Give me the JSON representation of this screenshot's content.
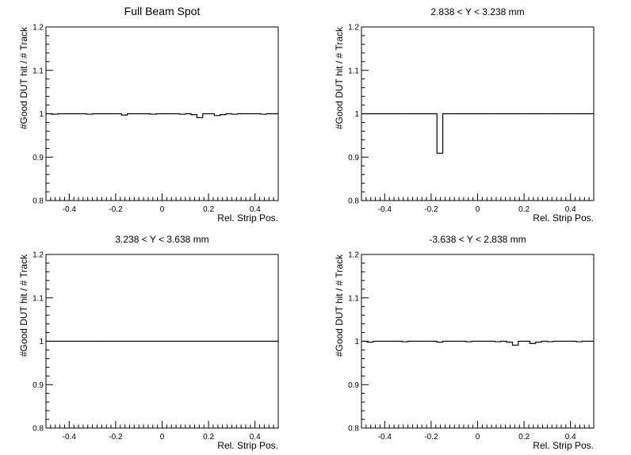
{
  "chart_data": [
    {
      "type": "line",
      "title": "Full Beam Spot",
      "xlabel": "Rel. Strip Pos.",
      "ylabel": "#Good DUT hit / # Track",
      "xlim": [
        -0.5,
        0.5
      ],
      "ylim": [
        0.8,
        1.2
      ],
      "xticks": [
        "-0.4",
        "-0.2",
        "0",
        "0.2",
        "0.4"
      ],
      "xtick_values": [
        -0.4,
        -0.2,
        0,
        0.2,
        0.4
      ],
      "yticks": [
        "0.8",
        "0.9",
        "1",
        "1.1",
        "1.2"
      ],
      "ytick_values": [
        0.8,
        0.9,
        1.0,
        1.1,
        1.2
      ],
      "grid": false,
      "bin_width": 0.025,
      "values": [
        1.0,
        0.999,
        1.0,
        1.0,
        1.0,
        1.0,
        1.0,
        0.999,
        1.0,
        1.0,
        1.0,
        1.0,
        1.0,
        0.997,
        1.0,
        1.0,
        1.0,
        1.0,
        0.999,
        1.0,
        1.0,
        1.0,
        1.0,
        0.999,
        1.0,
        0.998,
        0.991,
        1.0,
        1.0,
        0.996,
        0.998,
        1.0,
        0.999,
        1.0,
        1.0,
        1.0,
        1.0,
        0.999,
        1.0,
        1.0
      ]
    },
    {
      "type": "line",
      "title": "2.838 < Y <  3.238 mm",
      "xlabel": "Rel. Strip Pos.",
      "ylabel": "#Good DUT hit / # Track",
      "xlim": [
        -0.5,
        0.5
      ],
      "ylim": [
        0.8,
        1.2
      ],
      "xticks": [
        "-0.4",
        "-0.2",
        "0",
        "0.2",
        "0.4"
      ],
      "xtick_values": [
        -0.4,
        -0.2,
        0,
        0.2,
        0.4
      ],
      "yticks": [
        "0.8",
        "0.9",
        "1",
        "1.1",
        "1.2"
      ],
      "ytick_values": [
        0.8,
        0.9,
        1.0,
        1.1,
        1.2
      ],
      "grid": false,
      "bin_width": 0.025,
      "values": [
        1.0,
        1.0,
        1.0,
        1.0,
        1.0,
        1.0,
        1.0,
        1.0,
        1.0,
        1.0,
        1.0,
        1.0,
        1.0,
        0.909,
        1.0,
        1.0,
        1.0,
        1.0,
        1.0,
        1.0,
        1.0,
        1.0,
        1.0,
        1.0,
        1.0,
        1.0,
        1.0,
        1.0,
        1.0,
        1.0,
        1.0,
        1.0,
        1.0,
        1.0,
        1.0,
        1.0,
        1.0,
        1.0,
        1.0,
        1.0
      ]
    },
    {
      "type": "line",
      "title": "3.238 < Y <  3.638 mm",
      "xlabel": "Rel. Strip Pos.",
      "ylabel": "#Good DUT hit / # Track",
      "xlim": [
        -0.5,
        0.5
      ],
      "ylim": [
        0.8,
        1.2
      ],
      "xticks": [
        "-0.4",
        "-0.2",
        "0",
        "0.2",
        "0.4"
      ],
      "xtick_values": [
        -0.4,
        -0.2,
        0,
        0.2,
        0.4
      ],
      "yticks": [
        "0.8",
        "0.9",
        "1",
        "1.1",
        "1.2"
      ],
      "ytick_values": [
        0.8,
        0.9,
        1.0,
        1.1,
        1.2
      ],
      "grid": false,
      "bin_width": 0.025,
      "values": [
        1.0,
        1.0,
        1.0,
        1.0,
        1.0,
        1.0,
        1.0,
        1.0,
        1.0,
        1.0,
        1.0,
        1.0,
        1.0,
        1.0,
        1.0,
        1.0,
        1.0,
        1.0,
        1.0,
        1.0,
        1.0,
        1.0,
        1.0,
        1.0,
        1.0,
        1.0,
        1.0,
        1.0,
        1.0,
        1.0,
        1.0,
        1.0,
        1.0,
        1.0,
        1.0,
        1.0,
        1.0,
        1.0,
        1.0,
        1.0
      ]
    },
    {
      "type": "line",
      "title": "-3.638 < Y <  2.838 mm",
      "xlabel": "Rel. Strip Pos.",
      "ylabel": "#Good DUT hit / # Track",
      "xlim": [
        -0.5,
        0.5
      ],
      "ylim": [
        0.8,
        1.2
      ],
      "xticks": [
        "-0.4",
        "-0.2",
        "0",
        "0.2",
        "0.4"
      ],
      "xtick_values": [
        -0.4,
        -0.2,
        0,
        0.2,
        0.4
      ],
      "yticks": [
        "0.8",
        "0.9",
        "1",
        "1.1",
        "1.2"
      ],
      "ytick_values": [
        0.8,
        0.9,
        1.0,
        1.1,
        1.2
      ],
      "grid": false,
      "bin_width": 0.025,
      "values": [
        1.0,
        0.998,
        1.0,
        1.0,
        1.0,
        1.0,
        1.0,
        0.999,
        1.0,
        1.0,
        1.0,
        1.0,
        1.0,
        0.998,
        1.0,
        1.0,
        1.0,
        1.0,
        0.999,
        1.0,
        1.0,
        1.0,
        1.0,
        0.999,
        1.0,
        0.998,
        0.991,
        1.0,
        1.0,
        0.995,
        0.998,
        1.0,
        0.999,
        1.0,
        1.0,
        1.0,
        1.0,
        0.999,
        1.0,
        1.0
      ]
    }
  ]
}
